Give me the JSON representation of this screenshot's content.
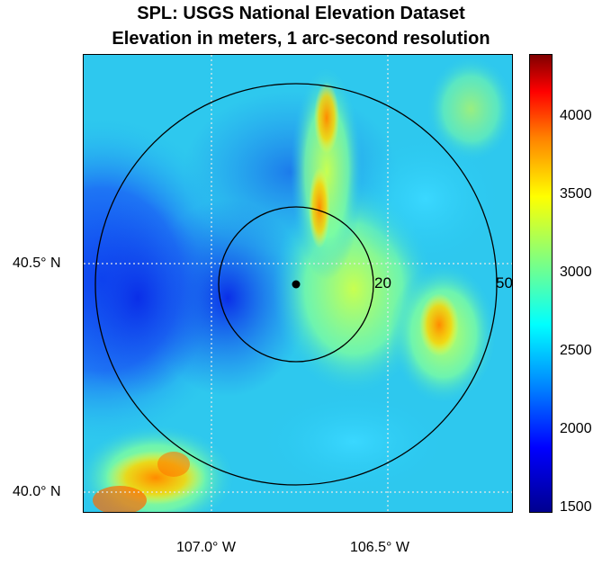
{
  "title_line1": "SPL: USGS National Elevation Dataset",
  "title_line2": "Elevation in meters, 1 arc-second resolution",
  "latitude_labels": [
    "40.5° N",
    "40.0° N"
  ],
  "longitude_labels": [
    "107.0° W",
    "106.5° W"
  ],
  "ring_labels": [
    "20",
    "50"
  ],
  "colorbar": {
    "min": 1500,
    "max": 4400,
    "ticks": [
      "4000",
      "3500",
      "3000",
      "2500",
      "2000",
      "1500"
    ],
    "colormap": "jet"
  },
  "colors": {
    "low": "#00008f",
    "high": "#800000"
  }
}
